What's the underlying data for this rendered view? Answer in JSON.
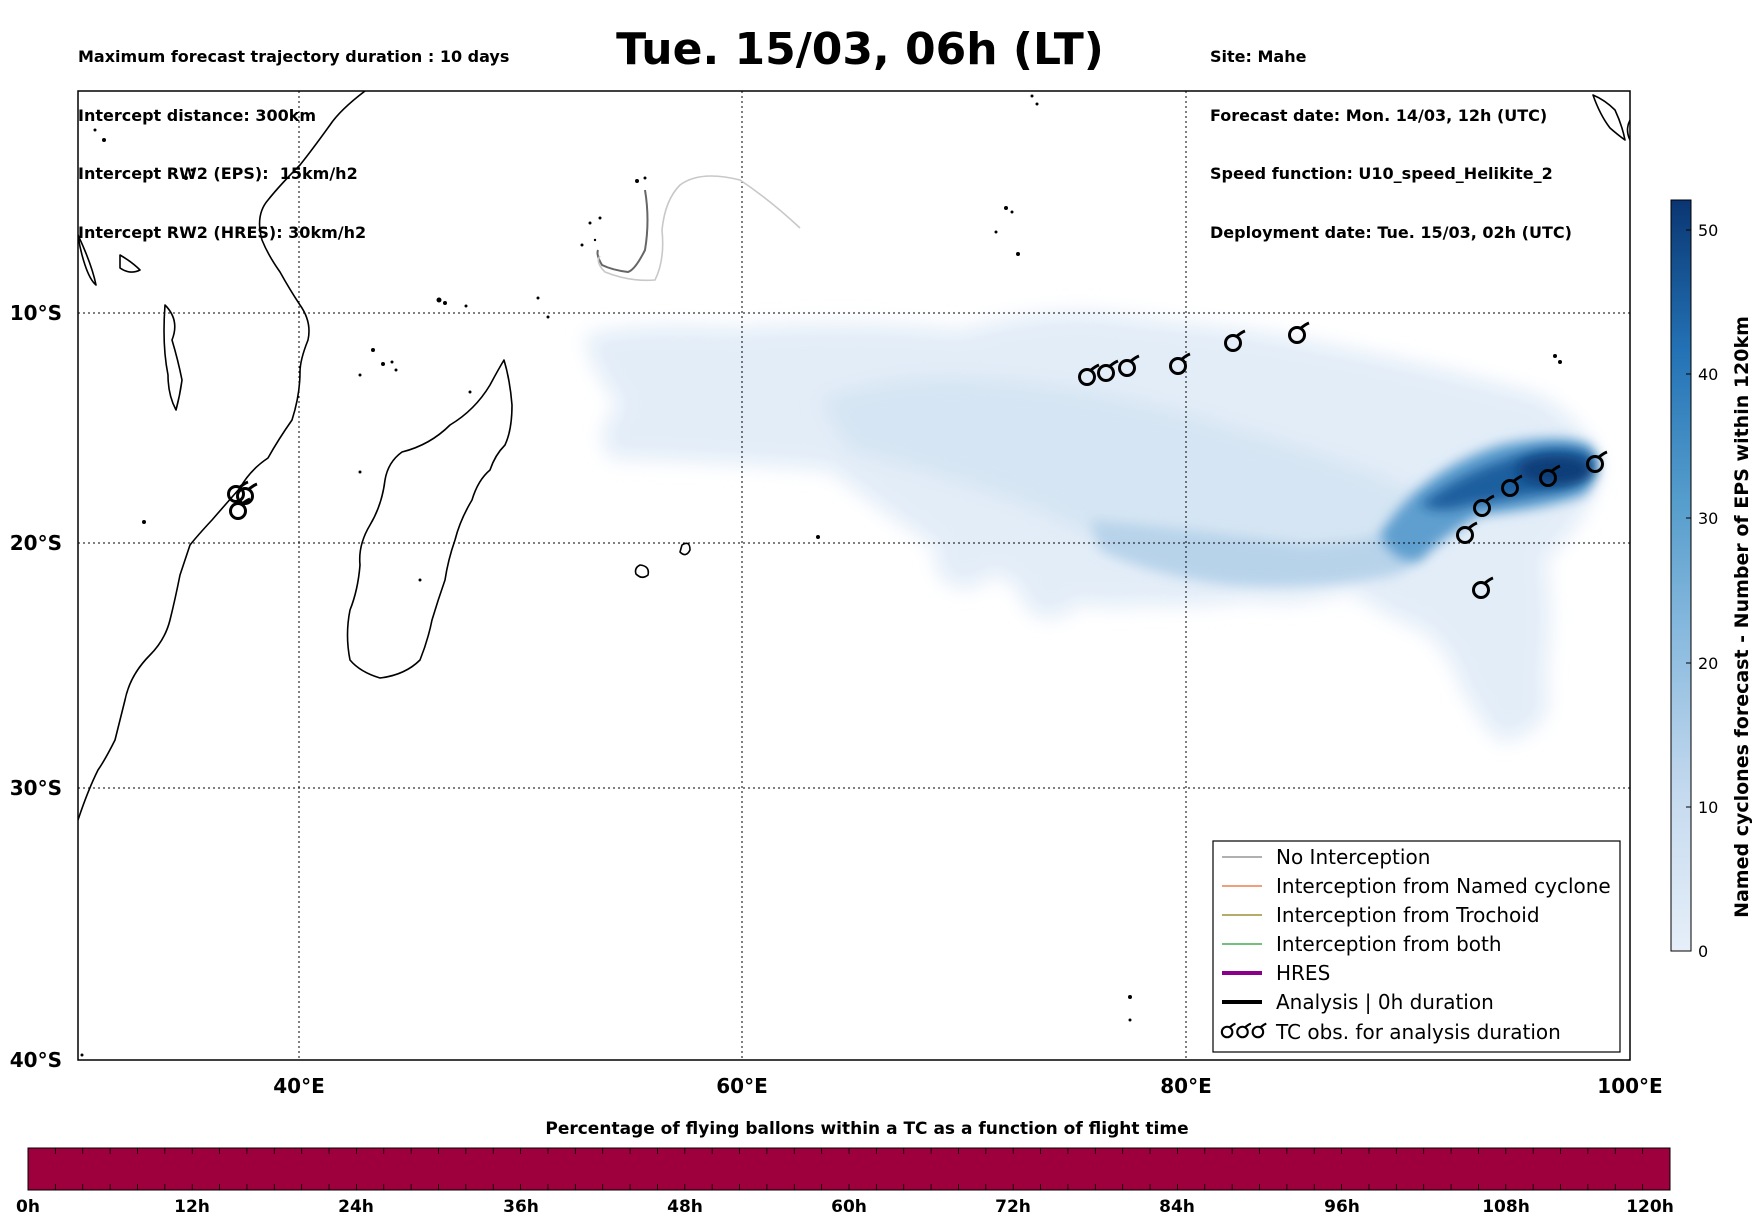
{
  "header": {
    "left_lines": [
      "Maximum forecast trajectory duration : 10 days",
      "Intercept distance: 300km",
      "Intercept RW2 (EPS):  15km/h2",
      "Intercept RW2 (HRES): 30km/h2"
    ],
    "title": "Tue. 15/03, 06h (LT)",
    "right_lines": [
      "Site: Mahe",
      "Forecast date: Mon. 14/03, 12h (UTC)",
      "Speed function: U10_speed_Helikite_2",
      "Deployment date: Tue. 15/03, 02h (UTC)"
    ]
  },
  "map": {
    "lon_labels": [
      "40°E",
      "60°E",
      "80°E",
      "100°E"
    ],
    "lat_labels": [
      "10°S",
      "20°S",
      "30°S",
      "40°S"
    ]
  },
  "colorbar": {
    "label": "Named cyclones forecast - Number of EPS within 120km",
    "ticks": [
      "0",
      "10",
      "20",
      "30",
      "40",
      "50"
    ],
    "colors": {
      "low": "#e2ecf8",
      "high": "#0b3a78"
    }
  },
  "legend": {
    "items": [
      {
        "label": "No Interception",
        "color": "#808080"
      },
      {
        "label": "Interception from Named cyclone",
        "color": "#e8662a"
      },
      {
        "label": "Interception from Trochoid",
        "color": "#8a7a10"
      },
      {
        "label": "Interception from both",
        "color": "#1f9a2e"
      },
      {
        "label": "HRES",
        "color": "#8b008b"
      },
      {
        "label": "Analysis | 0h duration",
        "color": "#000000"
      },
      {
        "label": "TC obs. for analysis duration",
        "icon": "cyclone-symbol-icon"
      }
    ]
  },
  "bottom_bar": {
    "title": "Percentage of flying ballons within a TC as a function of flight time",
    "ticks": [
      "0h",
      "12h",
      "24h",
      "36h",
      "48h",
      "60h",
      "72h",
      "84h",
      "96h",
      "108h",
      "120h"
    ],
    "color": "#9d003c"
  }
}
